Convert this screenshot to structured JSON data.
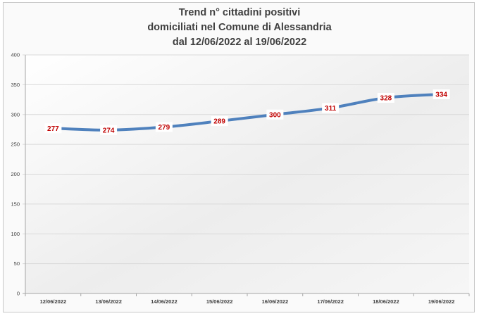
{
  "chart_data": {
    "type": "line",
    "title_lines": [
      "Trend n° cittadini positivi",
      "domiciliati nel Comune di Alessandria",
      "dal 12/06/2022 al 19/06/2022"
    ],
    "categories": [
      "12/06/2022",
      "13/06/2022",
      "14/06/2022",
      "15/06/2022",
      "16/06/2022",
      "17/06/2022",
      "18/06/2022",
      "19/06/2022"
    ],
    "values": [
      277,
      274,
      279,
      289,
      300,
      311,
      328,
      334
    ],
    "xlabel": "",
    "ylabel": "",
    "ylim": [
      0,
      400
    ],
    "yticks": [
      0,
      50,
      100,
      150,
      200,
      250,
      300,
      350,
      400
    ],
    "grid": true,
    "legend": "none",
    "data_labels": true,
    "colors": {
      "line": "#4f81bd",
      "data_label": "#c00000",
      "grid": "#d9d9d9",
      "background": "#fafafa"
    }
  }
}
